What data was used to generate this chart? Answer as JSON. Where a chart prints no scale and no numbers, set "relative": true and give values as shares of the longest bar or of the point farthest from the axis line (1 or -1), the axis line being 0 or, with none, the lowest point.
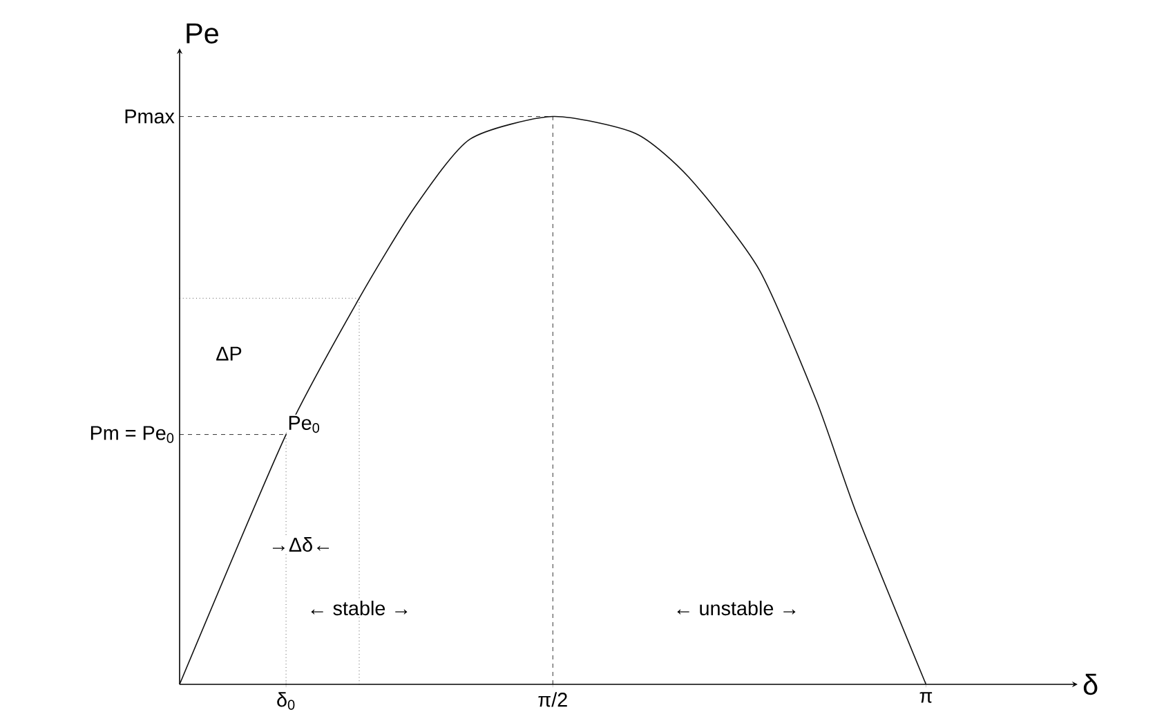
{
  "chart_data": {
    "type": "line",
    "relative": true,
    "xlabel": "δ",
    "ylabel": "Pe",
    "x": [
      0,
      0.448,
      0.756,
      0.989,
      1.222,
      1.571,
      1.92,
      2.15,
      2.44,
      2.68,
      2.85,
      3.1416
    ],
    "values": [
      0,
      0.44,
      0.68,
      0.84,
      0.96,
      1,
      0.97,
      0.89,
      0.73,
      0.5,
      0.3,
      0
    ],
    "color": "#111111",
    "marker": "none",
    "line_style": "solid",
    "xlim": [
      0,
      3.78
    ],
    "xticks": [
      {
        "value": 0.448,
        "label": "δ$_{0}$"
      },
      {
        "value": 1.571,
        "label": "π/2"
      },
      {
        "value": 3.1416,
        "label": "π"
      }
    ],
    "ref_lines": [
      {
        "axis": "y",
        "value": 1,
        "label": "Pmax",
        "line_style": "dashed"
      },
      {
        "axis": "y",
        "value": 0.44,
        "label": "Pm = Pe$_{0}$",
        "line_style": "dashed"
      },
      {
        "axis": "y",
        "value": 0.68,
        "line_style": "dotted"
      },
      {
        "axis": "x",
        "value": 1.571,
        "line_style": "dashed"
      },
      {
        "axis": "x",
        "value": 0.448,
        "line_style": "dotted"
      },
      {
        "axis": "x",
        "value": 0.756,
        "line_style": "dotted"
      }
    ],
    "annotations": [
      {
        "text": "Pe$_{0}$",
        "x": 0.448,
        "y": 0.44
      },
      "ΔP",
      "→Δδ←",
      "← stable →",
      "← unstable →"
    ]
  }
}
